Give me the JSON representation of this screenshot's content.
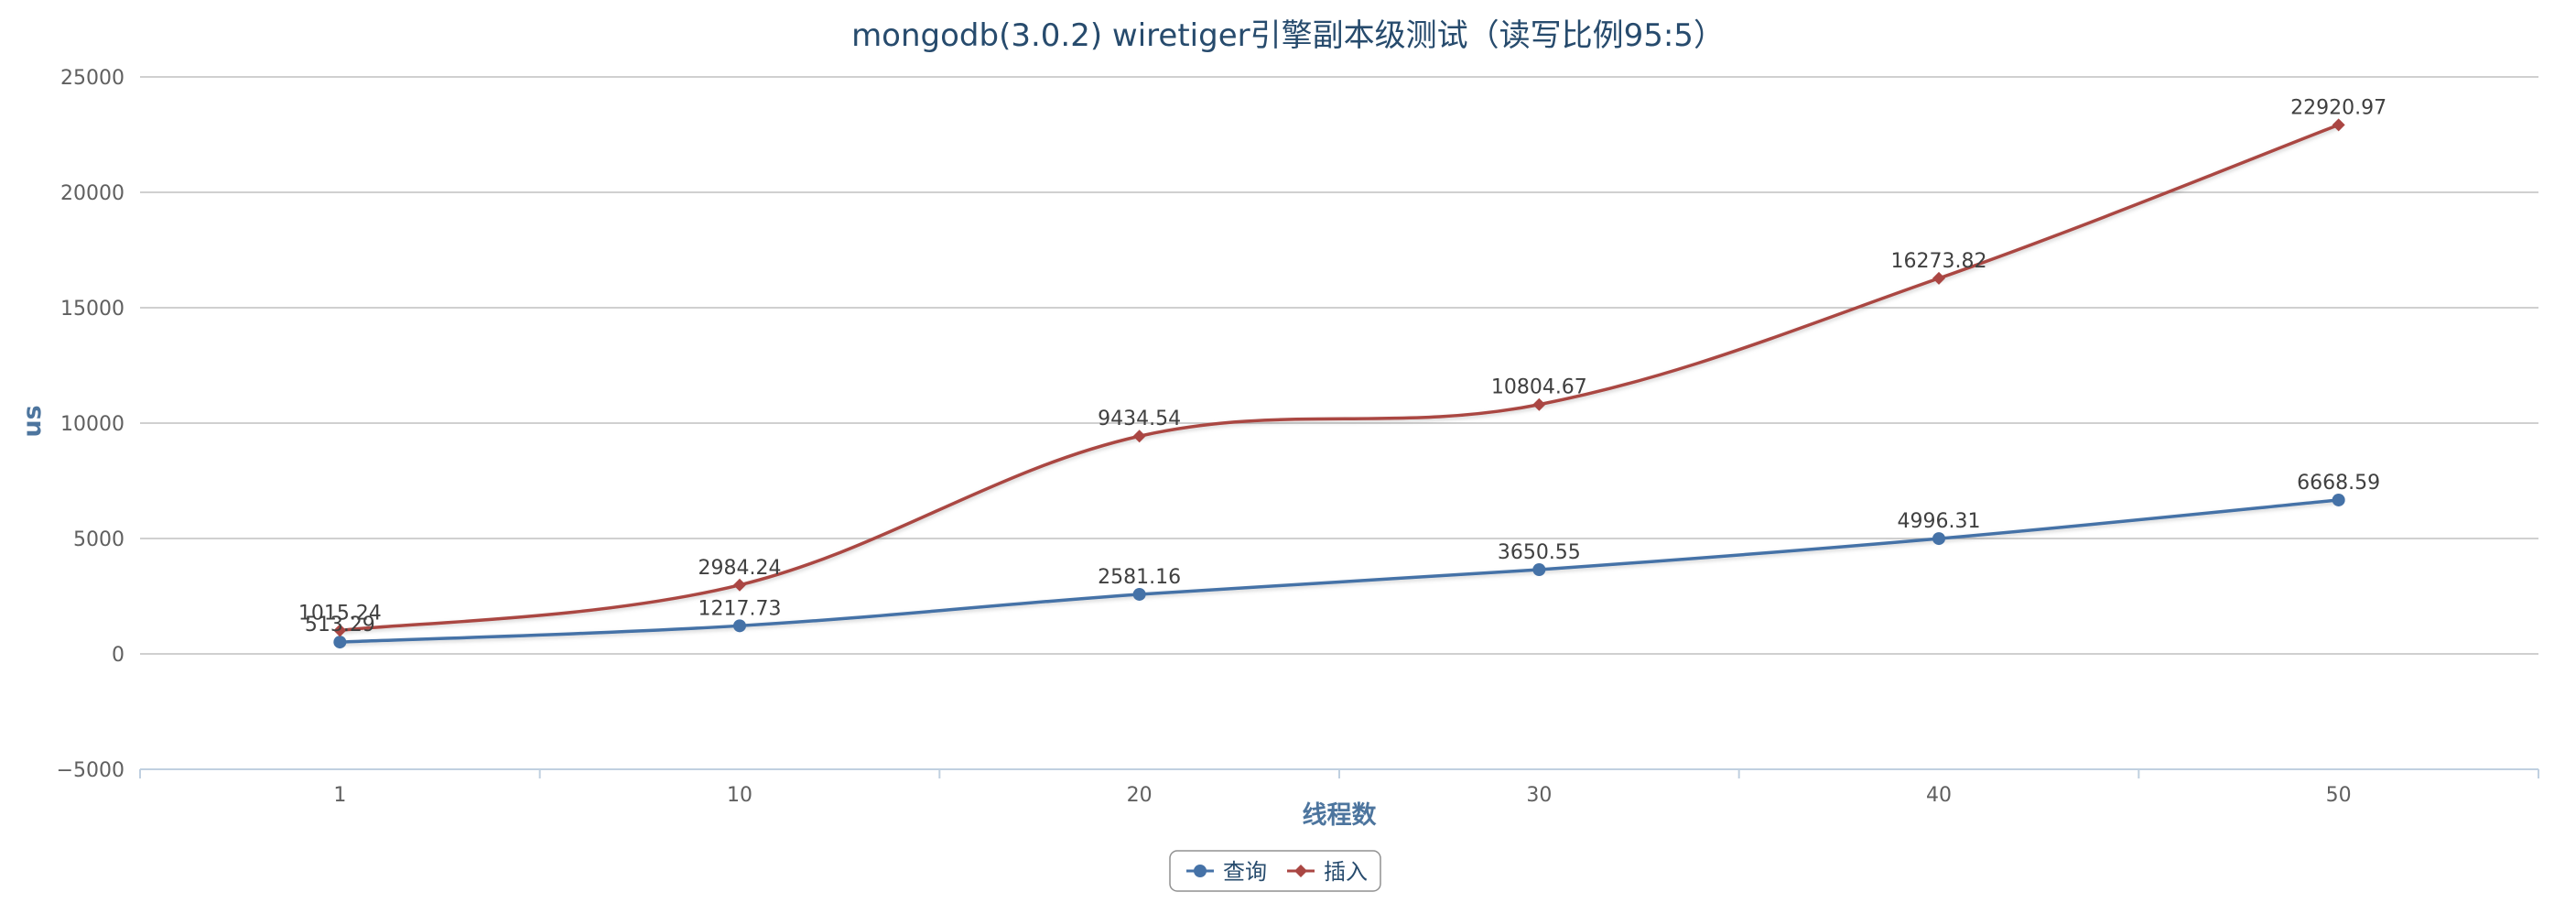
{
  "chart_data": {
    "type": "line",
    "title": "mongodb(3.0.2) wiretiger引擎副本级测试（读写比例95:5）",
    "xlabel": "线程数",
    "ylabel": "us",
    "categories": [
      "1",
      "10",
      "20",
      "30",
      "40",
      "50"
    ],
    "ylim": [
      -5000,
      25000
    ],
    "yticks": [
      -5000,
      0,
      5000,
      10000,
      15000,
      20000,
      25000
    ],
    "yticks_labels": [
      "−5000",
      "0",
      "5000",
      "10000",
      "15000",
      "20000",
      "25000"
    ],
    "grid": true,
    "legend_position": "bottom-center",
    "series": [
      {
        "name": "查询",
        "color": "#4572A7",
        "marker": "circle",
        "values": [
          513.29,
          1217.73,
          2581.16,
          3650.55,
          4996.31,
          6668.59
        ],
        "labels": [
          "513.29",
          "1217.73",
          "2581.16",
          "3650.55",
          "4996.31",
          "6668.59"
        ]
      },
      {
        "name": "插入",
        "color": "#AA4643",
        "marker": "diamond",
        "values": [
          1015.24,
          2984.24,
          9434.54,
          10804.67,
          16273.82,
          22920.97
        ],
        "labels": [
          "1015.24",
          "2984.24",
          "9434.54",
          "10804.67",
          "16273.82",
          "22920.97"
        ]
      }
    ]
  }
}
